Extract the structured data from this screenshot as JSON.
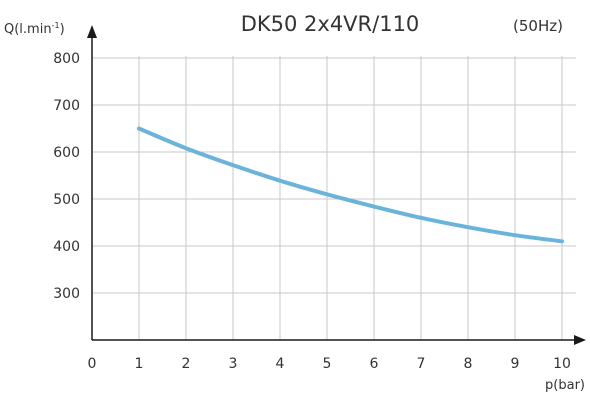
{
  "chart_data": {
    "type": "line",
    "title": "DK50 2x4VR/110",
    "subtitle": "(50Hz)",
    "xlabel": "p(bar)",
    "ylabel_main": "Q(l.min",
    "ylabel_sup": "-1",
    "ylabel_close": ")",
    "xlim": [
      0,
      10
    ],
    "ylim": [
      200,
      800
    ],
    "x_ticks": [
      "0",
      "1",
      "2",
      "3",
      "4",
      "5",
      "6",
      "7",
      "8",
      "9",
      "10"
    ],
    "y_ticks": [
      "300",
      "400",
      "500",
      "600",
      "700",
      "800"
    ],
    "grid": true,
    "series": [
      {
        "color": "#6ab4dc",
        "x": [
          1,
          2,
          3,
          4,
          5,
          6,
          7,
          8,
          9,
          10
        ],
        "y": [
          650,
          608,
          572,
          539,
          510,
          484,
          460,
          440,
          423,
          410
        ]
      }
    ]
  }
}
